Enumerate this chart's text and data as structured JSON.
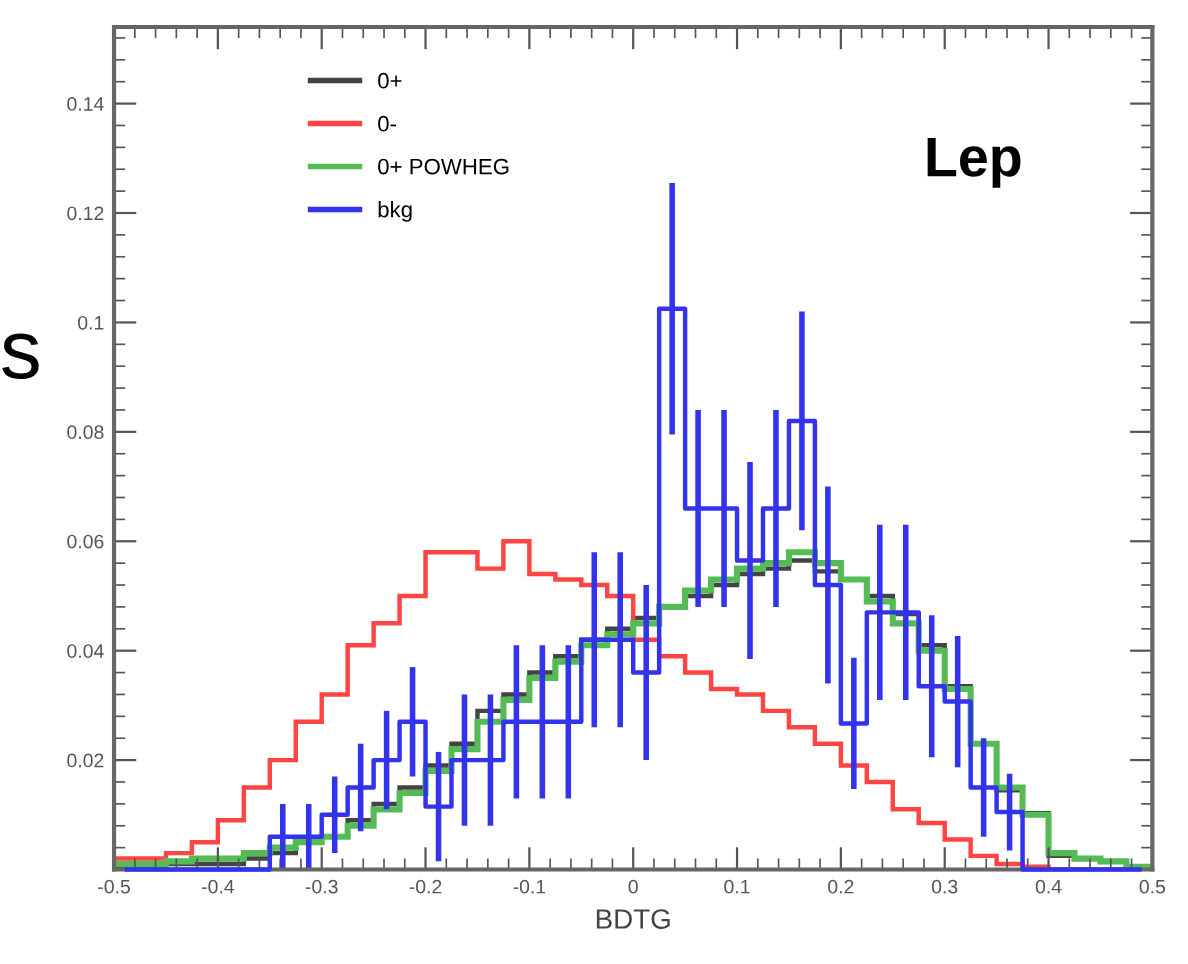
{
  "chart_data": {
    "type": "histogram",
    "xlabel": "BDTG",
    "annotations": [
      "Lep",
      "s"
    ],
    "bins": [
      -0.5,
      -0.475,
      -0.45,
      -0.425,
      -0.4,
      -0.375,
      -0.35,
      -0.325,
      -0.3,
      -0.275,
      -0.25,
      -0.225,
      -0.2,
      -0.175,
      -0.15,
      -0.125,
      -0.1,
      -0.075,
      -0.05,
      -0.025,
      0,
      0.025,
      0.05,
      0.075,
      0.1,
      0.125,
      0.15,
      0.175,
      0.2,
      0.225,
      0.25,
      0.275,
      0.3,
      0.325,
      0.35,
      0.375,
      0.4,
      0.425,
      0.45,
      0.475,
      0.5
    ],
    "series": [
      {
        "name": "0+",
        "color": "#444444",
        "values": [
          0.0005,
          0.0005,
          0.001,
          0.001,
          0.001,
          0.002,
          0.003,
          0.005,
          0.006,
          0.009,
          0.012,
          0.015,
          0.019,
          0.023,
          0.029,
          0.032,
          0.036,
          0.039,
          0.042,
          0.044,
          0.046,
          0.048,
          0.05,
          0.052,
          0.054,
          0.055,
          0.0565,
          0.0545,
          0.053,
          0.05,
          0.0467,
          0.041,
          0.0335,
          0.023,
          0.0145,
          0.0103,
          0.0025,
          0.002,
          0.0015,
          0.0005
        ]
      },
      {
        "name": "0-",
        "color": "#ff4444",
        "values": [
          0.002,
          0.002,
          0.003,
          0.005,
          0.009,
          0.015,
          0.02,
          0.027,
          0.032,
          0.041,
          0.045,
          0.05,
          0.058,
          0.058,
          0.055,
          0.06,
          0.054,
          0.053,
          0.052,
          0.05,
          0.042,
          0.039,
          0.036,
          0.033,
          0.032,
          0.029,
          0.026,
          0.023,
          0.019,
          0.016,
          0.011,
          0.0085,
          0.0055,
          0.0025,
          0.001,
          0.0005,
          0,
          0,
          0,
          0
        ]
      },
      {
        "name": "0+ POWHEG",
        "color": "#55bb55",
        "values": [
          0.001,
          0.001,
          0.0015,
          0.002,
          0.002,
          0.003,
          0.004,
          0.005,
          0.006,
          0.008,
          0.011,
          0.014,
          0.018,
          0.022,
          0.027,
          0.031,
          0.035,
          0.038,
          0.041,
          0.043,
          0.045,
          0.048,
          0.051,
          0.053,
          0.055,
          0.056,
          0.058,
          0.056,
          0.053,
          0.049,
          0.045,
          0.04,
          0.033,
          0.023,
          0.015,
          0.01,
          0.003,
          0.002,
          0.0015,
          0.0005
        ]
      },
      {
        "name": "bkg",
        "color": "#3333ee",
        "type": "step",
        "x": [
          -0.4875,
          -0.4625,
          -0.4375,
          -0.4125,
          -0.3875,
          -0.3625,
          -0.3375,
          -0.3125,
          -0.2875,
          -0.2625,
          -0.2375,
          -0.2125,
          -0.1875,
          -0.1625,
          -0.1375,
          -0.1125,
          -0.0875,
          -0.0625,
          -0.0375,
          -0.0125,
          0.0125,
          0.0375,
          0.0625,
          0.0875,
          0.1125,
          0.1375,
          0.1625,
          0.1875,
          0.2125,
          0.2375,
          0.2625,
          0.2875,
          0.3125,
          0.3375,
          0.3625,
          0.3875,
          0.4125,
          0.4375,
          0.4625,
          0.4875
        ],
        "values": [
          0,
          0,
          0,
          0,
          0,
          0,
          0.006,
          0.006,
          0.01,
          0.015,
          0.02,
          0.027,
          0.0115,
          0.02,
          0.02,
          0.027,
          0.027,
          0.027,
          0.042,
          0.042,
          0.036,
          0.1025,
          0.066,
          0.066,
          0.0565,
          0.066,
          0.082,
          0.052,
          0.0267,
          0.047,
          0.047,
          0.0335,
          0.0307,
          0.015,
          0.0105,
          0,
          0,
          0,
          0,
          0
        ],
        "errors": [
          null,
          null,
          null,
          null,
          null,
          null,
          0.006,
          0.006,
          0.007,
          0.008,
          0.009,
          0.01,
          0.01,
          0.012,
          0.012,
          0.014,
          0.014,
          0.014,
          0.016,
          0.016,
          0.016,
          0.023,
          0.018,
          0.018,
          0.018,
          0.018,
          0.02,
          0.018,
          0.012,
          0.016,
          0.016,
          0.013,
          0.012,
          0.009,
          0.007,
          null,
          null,
          null,
          null,
          null
        ]
      }
    ],
    "xlim": [
      -0.5,
      0.5
    ],
    "ylim": [
      0,
      0.154
    ],
    "xticks": [
      {
        "value": -0.5,
        "label": "-0.5"
      },
      {
        "value": -0.4,
        "label": "-0.4"
      },
      {
        "value": -0.3,
        "label": "-0.3"
      },
      {
        "value": -0.2,
        "label": "-0.2"
      },
      {
        "value": -0.1,
        "label": "-0.1"
      },
      0,
      0.1,
      0.2,
      0.3,
      0.4,
      0.5
    ],
    "yticks": [
      0.02,
      0.04,
      0.06,
      0.08,
      0.1,
      0.12,
      0.14
    ],
    "legend": "top left",
    "grid": false
  }
}
